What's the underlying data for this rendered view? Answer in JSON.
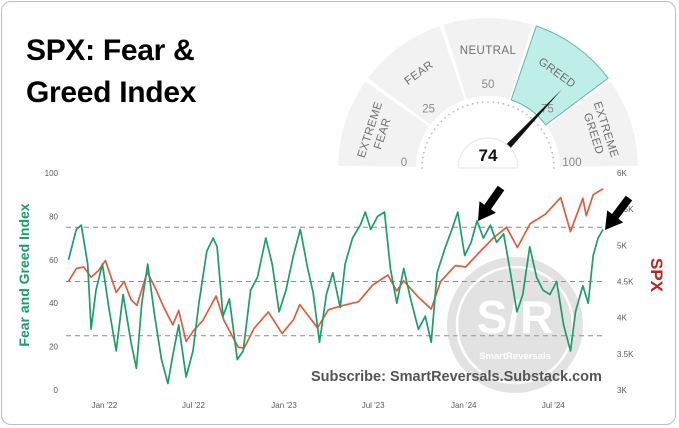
{
  "title": {
    "line1": "SPX: Fear &",
    "line2": "Greed Index"
  },
  "gauge": {
    "value": 74,
    "segments": [
      "EXTREME FEAR",
      "FEAR",
      "NEUTRAL",
      "GREED",
      "EXTREME GREED"
    ],
    "highlighted_segment": "GREED",
    "ticks": [
      "0",
      "25",
      "50",
      "75",
      "100"
    ],
    "highlight_color": "#bfeee9"
  },
  "chart_data": {
    "type": "line",
    "xlabel": "",
    "ylabel": "Fear and Greed Index",
    "y2label": "SPX",
    "x_ticks": [
      "Jan '22",
      "Jul '22",
      "Jan '23",
      "Jul '23",
      "Jan '24",
      "Jul '24"
    ],
    "y_ticks": [
      "0",
      "20",
      "40",
      "60",
      "80",
      "100"
    ],
    "y2_ticks": [
      "3K",
      "3.5K",
      "4K",
      "4.5K",
      "5K",
      "5.5K",
      "6K"
    ],
    "ylim": [
      0,
      100
    ],
    "y2lim": [
      3000,
      6000
    ],
    "reference_lines": [
      25,
      50,
      75
    ],
    "series": [
      {
        "name": "Fear and Greed Index",
        "axis": "left",
        "color": "#1a9e6a",
        "points": [
          [
            "2021-10-20",
            60
          ],
          [
            "2021-11-05",
            74
          ],
          [
            "2021-11-15",
            76
          ],
          [
            "2021-11-28",
            58
          ],
          [
            "2021-12-05",
            28
          ],
          [
            "2021-12-15",
            46
          ],
          [
            "2021-12-28",
            58
          ],
          [
            "2022-01-10",
            38
          ],
          [
            "2022-01-25",
            18
          ],
          [
            "2022-02-08",
            44
          ],
          [
            "2022-02-24",
            22
          ],
          [
            "2022-03-07",
            10
          ],
          [
            "2022-03-18",
            40
          ],
          [
            "2022-03-30",
            58
          ],
          [
            "2022-04-12",
            36
          ],
          [
            "2022-04-27",
            14
          ],
          [
            "2022-05-10",
            3
          ],
          [
            "2022-05-20",
            16
          ],
          [
            "2022-06-01",
            30
          ],
          [
            "2022-06-16",
            6
          ],
          [
            "2022-06-30",
            18
          ],
          [
            "2022-07-12",
            40
          ],
          [
            "2022-07-28",
            64
          ],
          [
            "2022-08-10",
            70
          ],
          [
            "2022-08-18",
            66
          ],
          [
            "2022-08-30",
            34
          ],
          [
            "2022-09-12",
            42
          ],
          [
            "2022-09-28",
            14
          ],
          [
            "2022-10-10",
            18
          ],
          [
            "2022-10-25",
            46
          ],
          [
            "2022-11-08",
            52
          ],
          [
            "2022-11-25",
            70
          ],
          [
            "2022-12-08",
            58
          ],
          [
            "2022-12-22",
            36
          ],
          [
            "2023-01-05",
            46
          ],
          [
            "2023-01-20",
            62
          ],
          [
            "2023-02-03",
            74
          ],
          [
            "2023-02-18",
            56
          ],
          [
            "2023-03-01",
            45
          ],
          [
            "2023-03-14",
            22
          ],
          [
            "2023-03-28",
            44
          ],
          [
            "2023-04-10",
            54
          ],
          [
            "2023-04-25",
            38
          ],
          [
            "2023-05-05",
            58
          ],
          [
            "2023-05-20",
            70
          ],
          [
            "2023-06-05",
            76
          ],
          [
            "2023-06-15",
            82
          ],
          [
            "2023-06-26",
            74
          ],
          [
            "2023-07-10",
            80
          ],
          [
            "2023-07-24",
            82
          ],
          [
            "2023-08-05",
            56
          ],
          [
            "2023-08-18",
            40
          ],
          [
            "2023-09-01",
            56
          ],
          [
            "2023-09-15",
            42
          ],
          [
            "2023-10-01",
            28
          ],
          [
            "2023-10-15",
            34
          ],
          [
            "2023-10-27",
            22
          ],
          [
            "2023-11-08",
            54
          ],
          [
            "2023-11-25",
            66
          ],
          [
            "2023-12-08",
            74
          ],
          [
            "2023-12-20",
            82
          ],
          [
            "2024-01-03",
            62
          ],
          [
            "2024-01-16",
            68
          ],
          [
            "2024-01-28",
            78
          ],
          [
            "2024-02-10",
            70
          ],
          [
            "2024-02-24",
            76
          ],
          [
            "2024-03-08",
            68
          ],
          [
            "2024-03-22",
            72
          ],
          [
            "2024-04-05",
            54
          ],
          [
            "2024-04-18",
            36
          ],
          [
            "2024-04-30",
            44
          ],
          [
            "2024-05-14",
            66
          ],
          [
            "2024-05-28",
            52
          ],
          [
            "2024-06-10",
            46
          ],
          [
            "2024-06-24",
            44
          ],
          [
            "2024-07-08",
            50
          ],
          [
            "2024-07-22",
            30
          ],
          [
            "2024-08-05",
            18
          ],
          [
            "2024-08-15",
            36
          ],
          [
            "2024-08-30",
            48
          ],
          [
            "2024-09-10",
            40
          ],
          [
            "2024-09-20",
            62
          ],
          [
            "2024-09-30",
            70
          ],
          [
            "2024-10-10",
            74
          ]
        ]
      },
      {
        "name": "SPX",
        "axis": "right",
        "color": "#e65a3c",
        "points": [
          [
            "2021-10-20",
            4500
          ],
          [
            "2021-11-05",
            4680
          ],
          [
            "2021-11-20",
            4700
          ],
          [
            "2021-12-05",
            4560
          ],
          [
            "2021-12-20",
            4650
          ],
          [
            "2022-01-03",
            4790
          ],
          [
            "2022-01-25",
            4350
          ],
          [
            "2022-02-10",
            4500
          ],
          [
            "2022-02-24",
            4250
          ],
          [
            "2022-03-08",
            4170
          ],
          [
            "2022-03-29",
            4630
          ],
          [
            "2022-04-15",
            4400
          ],
          [
            "2022-05-01",
            4150
          ],
          [
            "2022-05-20",
            3900
          ],
          [
            "2022-06-01",
            4100
          ],
          [
            "2022-06-16",
            3670
          ],
          [
            "2022-07-01",
            3820
          ],
          [
            "2022-07-20",
            3960
          ],
          [
            "2022-08-16",
            4300
          ],
          [
            "2022-09-01",
            3960
          ],
          [
            "2022-09-30",
            3590
          ],
          [
            "2022-10-12",
            3580
          ],
          [
            "2022-11-01",
            3850
          ],
          [
            "2022-11-30",
            4080
          ],
          [
            "2022-12-28",
            3780
          ],
          [
            "2023-01-20",
            3970
          ],
          [
            "2023-02-02",
            4180
          ],
          [
            "2023-03-10",
            3860
          ],
          [
            "2023-04-01",
            4110
          ],
          [
            "2023-05-01",
            4170
          ],
          [
            "2023-06-01",
            4220
          ],
          [
            "2023-06-30",
            4450
          ],
          [
            "2023-07-31",
            4590
          ],
          [
            "2023-08-18",
            4370
          ],
          [
            "2023-09-01",
            4510
          ],
          [
            "2023-09-30",
            4290
          ],
          [
            "2023-10-27",
            4120
          ],
          [
            "2023-11-15",
            4500
          ],
          [
            "2023-12-15",
            4720
          ],
          [
            "2024-01-05",
            4700
          ],
          [
            "2024-02-01",
            4900
          ],
          [
            "2024-03-01",
            5100
          ],
          [
            "2024-03-28",
            5250
          ],
          [
            "2024-04-19",
            4970
          ],
          [
            "2024-05-15",
            5300
          ],
          [
            "2024-06-15",
            5430
          ],
          [
            "2024-07-16",
            5660
          ],
          [
            "2024-08-05",
            5190
          ],
          [
            "2024-08-30",
            5650
          ],
          [
            "2024-09-06",
            5410
          ],
          [
            "2024-09-20",
            5700
          ],
          [
            "2024-10-10",
            5780
          ]
        ]
      }
    ]
  },
  "subscribe_text": "Subscribe: SmartReversals.Substack.com",
  "watermark": {
    "letters": "S/R",
    "name": "SmartReversals"
  }
}
